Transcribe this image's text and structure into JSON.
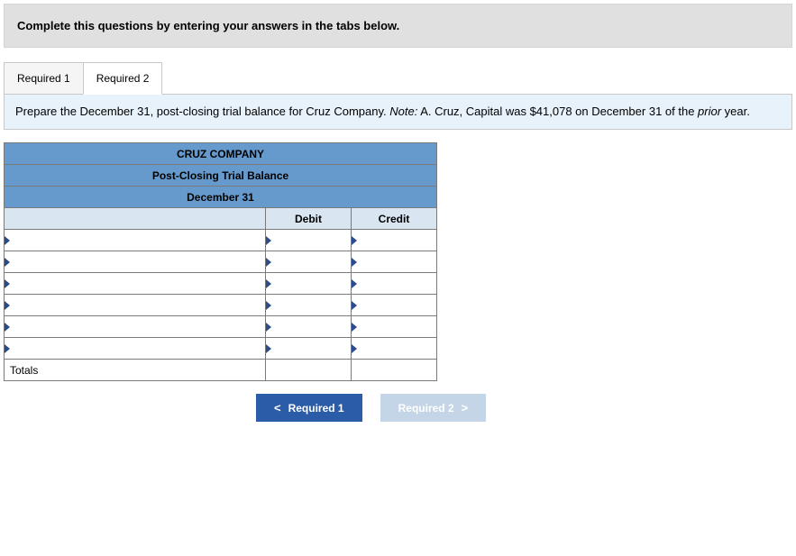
{
  "instruction": "Complete this questions by entering your answers in the tabs below.",
  "tabs": [
    {
      "label": "Required 1"
    },
    {
      "label": "Required 2"
    }
  ],
  "active_tab_index": 1,
  "prompt": {
    "text_before_note": "Prepare the December 31, post-closing trial balance for Cruz Company. ",
    "note_label": "Note:",
    "text_after_note": " A. Cruz, Capital was $41,078 on December 31 of the ",
    "italic_word": "prior",
    "text_end": " year."
  },
  "trial_balance": {
    "company": "CRUZ COMPANY",
    "title": "Post-Closing Trial Balance",
    "date": "December 31",
    "columns": {
      "debit": "Debit",
      "credit": "Credit"
    },
    "input_row_count": 6,
    "totals_label": "Totals",
    "colors": {
      "header_bg": "#6699cc",
      "colhead_bg": "#d9e6f2",
      "border": "#7a7a7a",
      "triangle": "#2a4b8d"
    }
  },
  "nav": {
    "prev": {
      "label": "Required 1",
      "chevron": "<"
    },
    "next": {
      "label": "Required 2",
      "chevron": ">"
    }
  }
}
